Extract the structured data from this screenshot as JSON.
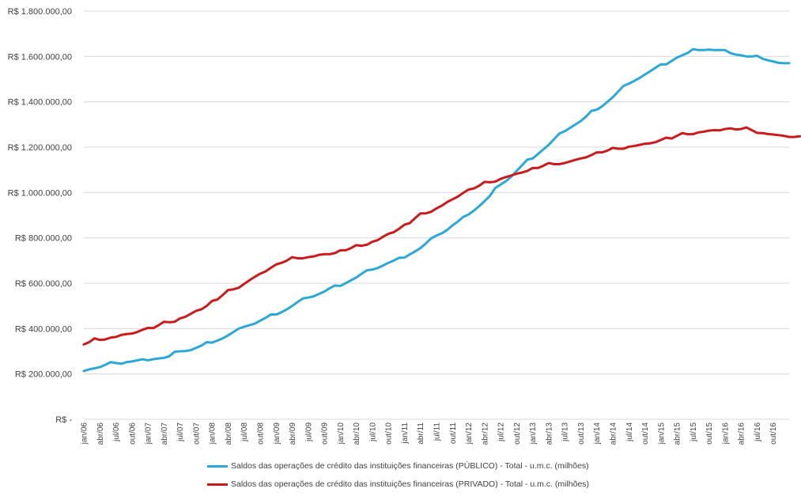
{
  "chart_data": {
    "type": "line",
    "title": "",
    "xlabel": "",
    "ylabel": "",
    "ylim": [
      0,
      1800000
    ],
    "y_ticks": [
      {
        "value": 0,
        "label": "R$ -"
      },
      {
        "value": 200000,
        "label": "R$ 200.000,00"
      },
      {
        "value": 400000,
        "label": "R$ 400.000,00"
      },
      {
        "value": 600000,
        "label": "R$ 600.000,00"
      },
      {
        "value": 800000,
        "label": "R$ 800.000,00"
      },
      {
        "value": 1000000,
        "label": "R$ 1.000.000,00"
      },
      {
        "value": 1200000,
        "label": "R$ 1.200.000,00"
      },
      {
        "value": 1400000,
        "label": "R$ 1.400.000,00"
      },
      {
        "value": 1600000,
        "label": "R$ 1.600.000,00"
      },
      {
        "value": 1800000,
        "label": "R$ 1.800.000,00"
      }
    ],
    "x_tick_labels": [
      "jan/06",
      "abr/06",
      "jul/06",
      "out/06",
      "jan/07",
      "abr/07",
      "jul/07",
      "out/07",
      "jan/08",
      "abr/08",
      "jul/08",
      "out/08",
      "jan/09",
      "abr/09",
      "jul/09",
      "out/09",
      "jan/10",
      "abr/10",
      "jul/10",
      "out/10",
      "jan/11",
      "abr/11",
      "jul/11",
      "out/11",
      "jan/12",
      "abr/12",
      "jul/12",
      "out/12",
      "jan/13",
      "abr/13",
      "jul/13",
      "out/13",
      "jan/14",
      "abr/14",
      "jul/14",
      "out/14",
      "jan/15",
      "abr/15",
      "jul/15",
      "out/15",
      "jan/16",
      "abr/16",
      "jul/16",
      "out/16"
    ],
    "grid": true,
    "legend_position": "bottom",
    "series": [
      {
        "name": "Saldos das operações de crédito das instituições financeiras (PÚBLICO) - Total - u.m.c. (milhões)",
        "color": "#2aa8d8",
        "values": [
          213000,
          220000,
          225000,
          230000,
          240000,
          252000,
          248000,
          245000,
          252000,
          255000,
          260000,
          265000,
          260000,
          265000,
          268000,
          271000,
          278000,
          298000,
          300000,
          301000,
          305000,
          315000,
          325000,
          340000,
          338000,
          347000,
          357000,
          370000,
          385000,
          400000,
          408000,
          415000,
          422000,
          435000,
          447000,
          462000,
          462000,
          472000,
          485000,
          500000,
          517000,
          533000,
          537000,
          542000,
          553000,
          563000,
          578000,
          590000,
          588000,
          600000,
          613000,
          625000,
          642000,
          657000,
          660000,
          667000,
          678000,
          690000,
          700000,
          712000,
          713000,
          727000,
          740000,
          755000,
          775000,
          798000,
          810000,
          820000,
          835000,
          855000,
          872000,
          892000,
          903000,
          920000,
          940000,
          962000,
          985000,
          1020000,
          1035000,
          1050000,
          1070000,
          1095000,
          1120000,
          1145000,
          1150000,
          1170000,
          1190000,
          1210000,
          1235000,
          1260000,
          1270000,
          1285000,
          1300000,
          1315000,
          1335000,
          1360000,
          1365000,
          1380000,
          1400000,
          1420000,
          1445000,
          1470000,
          1480000,
          1492000,
          1505000,
          1520000,
          1535000,
          1550000,
          1565000,
          1565000,
          1580000,
          1595000,
          1605000,
          1615000,
          1632000,
          1628000,
          1628000,
          1630000,
          1628000,
          1628000,
          1628000,
          1615000,
          1608000,
          1605000,
          1600000,
          1600000,
          1603000,
          1590000,
          1583000,
          1578000,
          1572000,
          1570000,
          1570000
        ]
      },
      {
        "name": "Saldos das operações de crédito das instituições financeiras (PRIVADO) - Total - u.m.c. (milhões)",
        "color": "#cc1a1a",
        "values": [
          330000,
          340000,
          357000,
          350000,
          352000,
          360000,
          363000,
          372000,
          376000,
          378000,
          385000,
          395000,
          403000,
          402000,
          415000,
          430000,
          428000,
          430000,
          445000,
          452000,
          465000,
          478000,
          485000,
          500000,
          522000,
          528000,
          548000,
          570000,
          573000,
          580000,
          597000,
          613000,
          628000,
          642000,
          652000,
          668000,
          683000,
          690000,
          700000,
          715000,
          710000,
          710000,
          715000,
          718000,
          725000,
          728000,
          728000,
          733000,
          745000,
          745000,
          755000,
          768000,
          765000,
          770000,
          783000,
          790000,
          805000,
          818000,
          825000,
          840000,
          858000,
          865000,
          887000,
          908000,
          908000,
          915000,
          930000,
          942000,
          958000,
          970000,
          982000,
          998000,
          1013000,
          1018000,
          1030000,
          1047000,
          1045000,
          1048000,
          1060000,
          1068000,
          1075000,
          1083000,
          1088000,
          1095000,
          1108000,
          1108000,
          1118000,
          1130000,
          1125000,
          1125000,
          1130000,
          1137000,
          1144000,
          1150000,
          1155000,
          1165000,
          1177000,
          1177000,
          1185000,
          1197000,
          1193000,
          1193000,
          1202000,
          1205000,
          1210000,
          1215000,
          1217000,
          1222000,
          1232000,
          1242000,
          1238000,
          1250000,
          1262000,
          1257000,
          1257000,
          1265000,
          1268000,
          1273000,
          1275000,
          1274000,
          1280000,
          1283000,
          1278000,
          1280000,
          1287000,
          1275000,
          1263000,
          1262000,
          1258000,
          1256000,
          1253000,
          1250000,
          1245000,
          1245000,
          1248000
        ]
      }
    ]
  }
}
